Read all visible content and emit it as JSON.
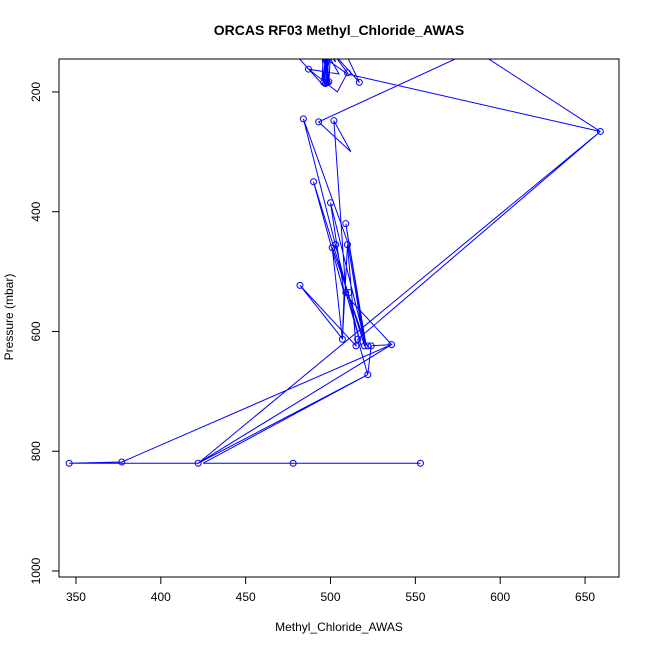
{
  "chart_data": {
    "type": "line",
    "title": "ORCAS RF03 Methyl_Chloride_AWAS",
    "xlabel": "Methyl_Chloride_AWAS",
    "ylabel": "Pressure (mbar)",
    "xlim": [
      340,
      670
    ],
    "ylim": [
      1010,
      145
    ],
    "y_inverted": true,
    "x_ticks": [
      350,
      400,
      450,
      500,
      550,
      600,
      650
    ],
    "y_ticks": [
      200,
      400,
      600,
      800,
      1000
    ],
    "grid": false,
    "legend": "none",
    "series": [
      {
        "color": "#0000ff",
        "points": [
          [
            477,
            130
          ],
          [
            496,
            190
          ],
          [
            498,
            130
          ],
          [
            497,
            190
          ],
          [
            498,
            130
          ],
          [
            498,
            188
          ],
          [
            497,
            130
          ],
          [
            496,
            185
          ],
          [
            495,
            130
          ],
          [
            499,
            190
          ],
          [
            500,
            130
          ],
          [
            497,
            188
          ],
          [
            499,
            186
          ],
          [
            498,
            188
          ],
          [
            496,
            130
          ],
          [
            499,
            190
          ],
          [
            498,
            130
          ],
          [
            499,
            188
          ],
          [
            496,
            130
          ],
          [
            495,
            180
          ],
          [
            500,
            130
          ],
          [
            503,
            150
          ],
          [
            497,
            130
          ],
          [
            505,
            170
          ],
          [
            487,
            162
          ],
          [
            504,
            200
          ],
          [
            510,
            168
          ],
          [
            500,
            130
          ],
          [
            517,
            184
          ],
          [
            508,
            130
          ],
          [
            490,
            130
          ],
          [
            510,
            170
          ],
          [
            659,
            266
          ],
          [
            585,
            130
          ],
          [
            493,
            250
          ],
          [
            512,
            300
          ],
          [
            502,
            248
          ],
          [
            509,
            534
          ],
          [
            518,
            624
          ],
          [
            484,
            245
          ],
          [
            510,
            450
          ],
          [
            520,
            624
          ],
          [
            490,
            350
          ],
          [
            508,
            536
          ],
          [
            500,
            385
          ],
          [
            520,
            614
          ],
          [
            509,
            420
          ],
          [
            521,
            624
          ],
          [
            501,
            460
          ],
          [
            507,
            613
          ],
          [
            510,
            455
          ],
          [
            515,
            624
          ],
          [
            482,
            523
          ],
          [
            507,
            612
          ],
          [
            508,
            536
          ],
          [
            536,
            622
          ],
          [
            524,
            624
          ],
          [
            522,
            672
          ],
          [
            516,
            613
          ],
          [
            659,
            266
          ],
          [
            422,
            820
          ],
          [
            536,
            622
          ],
          [
            377,
            818
          ],
          [
            346,
            820
          ],
          [
            422,
            820
          ],
          [
            522,
            672
          ],
          [
            425,
            820
          ],
          [
            478,
            820
          ],
          [
            553,
            820
          ]
        ],
        "markers": [
          [
            496,
            184
          ],
          [
            498,
            184
          ],
          [
            497,
            186
          ],
          [
            499,
            183
          ],
          [
            487,
            162
          ],
          [
            510,
            168
          ],
          [
            517,
            184
          ],
          [
            659,
            266
          ],
          [
            493,
            250
          ],
          [
            502,
            248
          ],
          [
            484,
            245
          ],
          [
            490,
            350
          ],
          [
            500,
            385
          ],
          [
            509,
            420
          ],
          [
            501,
            460
          ],
          [
            503,
            455
          ],
          [
            510,
            455
          ],
          [
            482,
            523
          ],
          [
            509,
            535
          ],
          [
            511,
            535
          ],
          [
            507,
            613
          ],
          [
            516,
            613
          ],
          [
            520,
            624
          ],
          [
            522,
            624
          ],
          [
            515,
            624
          ],
          [
            524,
            624
          ],
          [
            536,
            622
          ],
          [
            522,
            672
          ],
          [
            346,
            820
          ],
          [
            377,
            818
          ],
          [
            422,
            820
          ],
          [
            478,
            820
          ],
          [
            553,
            820
          ]
        ]
      }
    ]
  }
}
